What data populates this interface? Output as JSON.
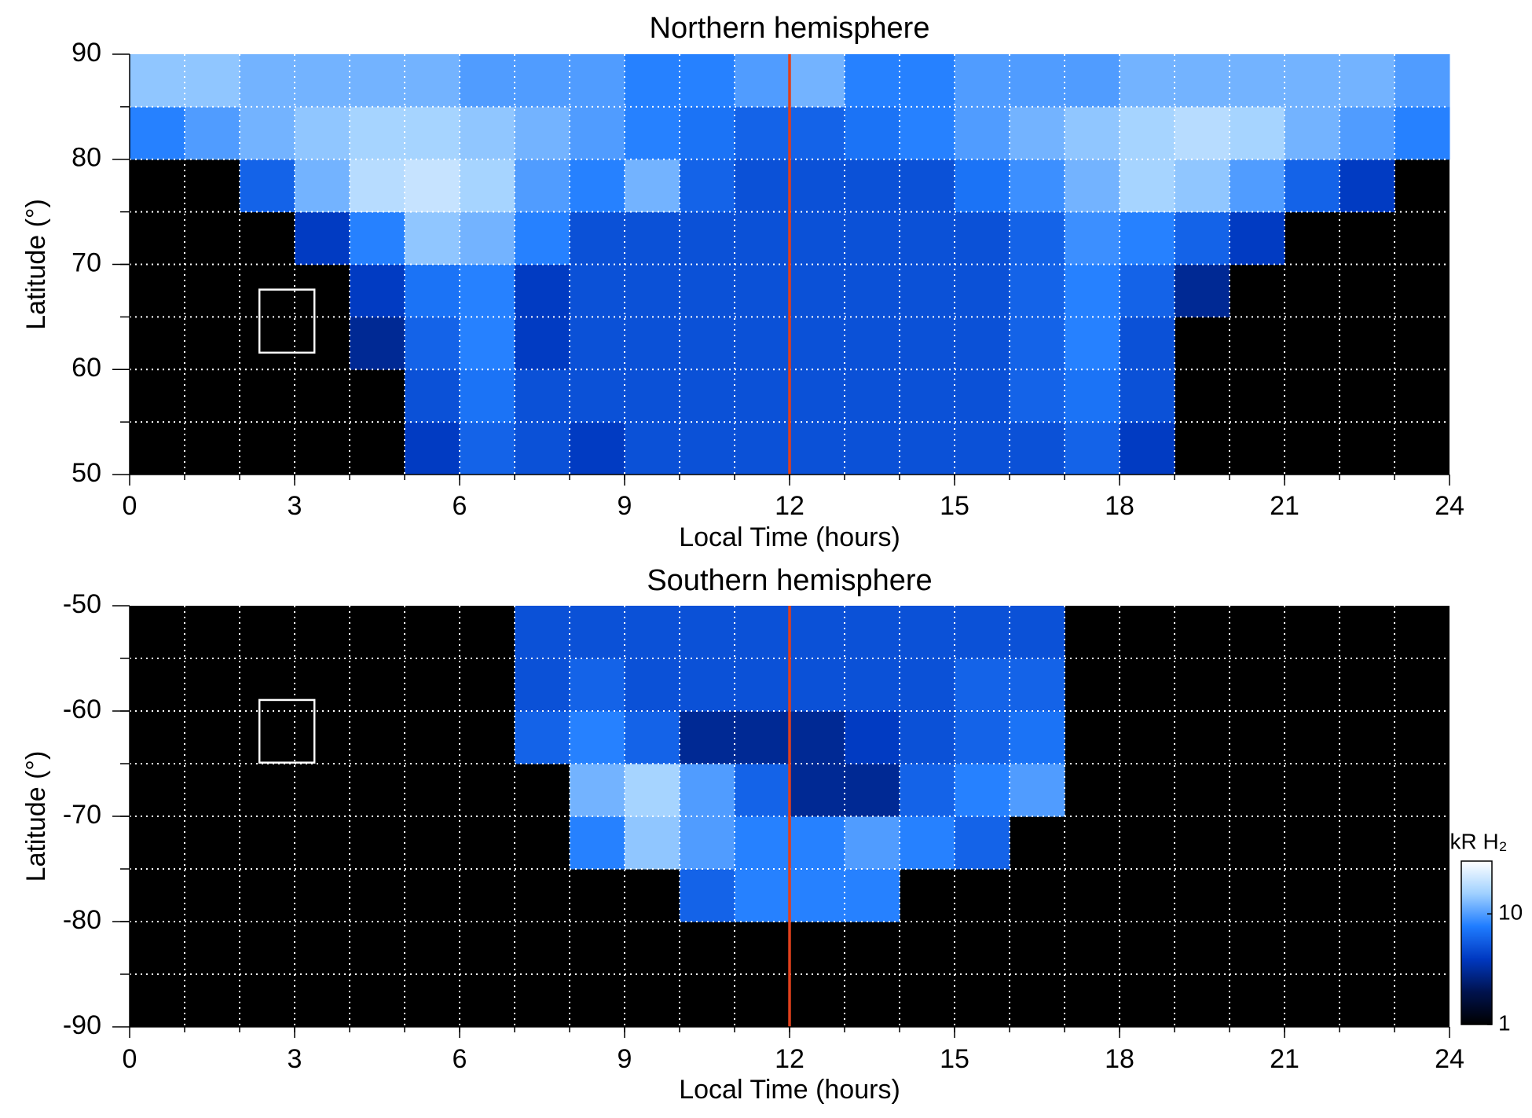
{
  "chart_data": [
    {
      "type": "heatmap",
      "title": "Northern hemisphere",
      "xlabel": "Local Time (hours)",
      "ylabel": "Latitude (°)",
      "xlim": [
        0,
        24
      ],
      "ylim": [
        50,
        90
      ],
      "xticks": [
        0,
        3,
        6,
        9,
        12,
        15,
        18,
        21,
        24
      ],
      "yticks": [
        50,
        60,
        70,
        80,
        90
      ],
      "xgrid": [
        1,
        2,
        3,
        4,
        5,
        6,
        7,
        8,
        9,
        10,
        11,
        12,
        13,
        14,
        15,
        16,
        17,
        18,
        19,
        20,
        21,
        22,
        23
      ],
      "ygrid": [
        55,
        60,
        65,
        70,
        75,
        80,
        85
      ],
      "xbins": [
        0,
        1,
        2,
        3,
        4,
        5,
        6,
        7,
        8,
        9,
        10,
        11,
        12,
        13,
        14,
        15,
        16,
        17,
        18,
        19,
        20,
        21,
        22,
        23,
        24
      ],
      "ybins": [
        50,
        55,
        60,
        65,
        70,
        75,
        80,
        85,
        90
      ],
      "z": [
        [
          null,
          null,
          null,
          null,
          null,
          4,
          6,
          5,
          4,
          5,
          5,
          5,
          5,
          5,
          5,
          5,
          5,
          6,
          4,
          null,
          null,
          null,
          null,
          null
        ],
        [
          null,
          null,
          null,
          null,
          null,
          5,
          7,
          5,
          5,
          5,
          5,
          5,
          5,
          5,
          5,
          5,
          6,
          7,
          5,
          null,
          null,
          null,
          null,
          null
        ],
        [
          null,
          null,
          null,
          null,
          3,
          6,
          8,
          4,
          5,
          5,
          5,
          5,
          5,
          5,
          5,
          5,
          6,
          8,
          5,
          null,
          null,
          null,
          null,
          null
        ],
        [
          null,
          null,
          null,
          null,
          4,
          7,
          8,
          4,
          5,
          5,
          5,
          5,
          5,
          5,
          5,
          5,
          6,
          8,
          6,
          3,
          null,
          null,
          null,
          null
        ],
        [
          null,
          null,
          null,
          4,
          8,
          14,
          12,
          8,
          5,
          5,
          5,
          5,
          5,
          5,
          5,
          5,
          6,
          9,
          8,
          6,
          4,
          null,
          null,
          null
        ],
        [
          null,
          null,
          6,
          12,
          18,
          20,
          16,
          10,
          8,
          12,
          6,
          5,
          5,
          5,
          5,
          7,
          9,
          12,
          16,
          14,
          10,
          6,
          4,
          null
        ],
        [
          8,
          10,
          12,
          14,
          16,
          16,
          14,
          12,
          10,
          8,
          7,
          6,
          6,
          7,
          8,
          10,
          12,
          14,
          16,
          18,
          16,
          12,
          10,
          8
        ],
        [
          14,
          14,
          12,
          12,
          12,
          12,
          10,
          10,
          10,
          8,
          8,
          10,
          12,
          8,
          8,
          10,
          10,
          10,
          12,
          12,
          12,
          12,
          12,
          10
        ]
      ],
      "vline": {
        "x": 12,
        "color": "#e0401c"
      },
      "box": {
        "x": [
          2.36,
          3.36
        ],
        "y": [
          61.6,
          67.6
        ],
        "color": "#ffffff"
      },
      "grid": true
    },
    {
      "type": "heatmap",
      "title": "Southern hemisphere",
      "xlabel": "Local Time (hours)",
      "ylabel": "Latitude (°)",
      "xlim": [
        0,
        24
      ],
      "ylim": [
        -90,
        -50
      ],
      "xticks": [
        0,
        3,
        6,
        9,
        12,
        15,
        18,
        21,
        24
      ],
      "yticks": [
        -90,
        -80,
        -70,
        -60,
        -50
      ],
      "xgrid": [
        1,
        2,
        3,
        4,
        5,
        6,
        7,
        8,
        9,
        10,
        11,
        12,
        13,
        14,
        15,
        16,
        17,
        18,
        19,
        20,
        21,
        22,
        23
      ],
      "ygrid": [
        -85,
        -80,
        -75,
        -70,
        -65,
        -60,
        -55
      ],
      "xbins": [
        0,
        1,
        2,
        3,
        4,
        5,
        6,
        7,
        8,
        9,
        10,
        11,
        12,
        13,
        14,
        15,
        16,
        17,
        18,
        19,
        20,
        21,
        22,
        23,
        24
      ],
      "ybins": [
        -90,
        -85,
        -80,
        -75,
        -70,
        -65,
        -60,
        -55,
        -50
      ],
      "z": [
        [
          null,
          null,
          null,
          null,
          null,
          null,
          null,
          null,
          null,
          null,
          null,
          null,
          null,
          null,
          null,
          null,
          null,
          null,
          null,
          null,
          null,
          null,
          null,
          null
        ],
        [
          null,
          null,
          null,
          null,
          null,
          null,
          null,
          null,
          null,
          null,
          null,
          null,
          null,
          null,
          null,
          null,
          null,
          null,
          null,
          null,
          null,
          null,
          null,
          null
        ],
        [
          null,
          null,
          null,
          null,
          null,
          null,
          null,
          null,
          null,
          null,
          6,
          8,
          8,
          8,
          null,
          null,
          null,
          null,
          null,
          null,
          null,
          null,
          null,
          null
        ],
        [
          null,
          null,
          null,
          null,
          null,
          null,
          null,
          null,
          8,
          14,
          10,
          8,
          8,
          10,
          8,
          6,
          null,
          null,
          null,
          null,
          null,
          null,
          null,
          null
        ],
        [
          null,
          null,
          null,
          null,
          null,
          null,
          null,
          null,
          12,
          16,
          10,
          6,
          3,
          3,
          6,
          8,
          10,
          null,
          null,
          null,
          null,
          null,
          null,
          null
        ],
        [
          null,
          null,
          null,
          null,
          null,
          null,
          null,
          6,
          8,
          6,
          3,
          3,
          3,
          4,
          5,
          6,
          7,
          null,
          null,
          null,
          null,
          null,
          null,
          null
        ],
        [
          null,
          null,
          null,
          null,
          null,
          null,
          null,
          5,
          6,
          5,
          5,
          5,
          5,
          5,
          5,
          6,
          6,
          null,
          null,
          null,
          null,
          null,
          null,
          null
        ],
        [
          null,
          null,
          null,
          null,
          null,
          null,
          null,
          5,
          5,
          5,
          5,
          5,
          5,
          5,
          5,
          5,
          5,
          null,
          null,
          null,
          null,
          null,
          null,
          null
        ]
      ],
      "vline": {
        "x": 12,
        "color": "#e0401c"
      },
      "box": {
        "x": [
          2.36,
          3.36
        ],
        "y": [
          -64.9,
          -58.95
        ],
        "color": "#ffffff"
      },
      "grid": true,
      "colorbar": {
        "label": "kR H₂",
        "lim": [
          1,
          30
        ],
        "ticks": [
          1,
          10
        ],
        "scale": "log",
        "colormap": [
          "#000000",
          "#00124e",
          "#0038c0",
          "#1f7cff",
          "#9fd0ff",
          "#ffffff"
        ]
      }
    }
  ]
}
